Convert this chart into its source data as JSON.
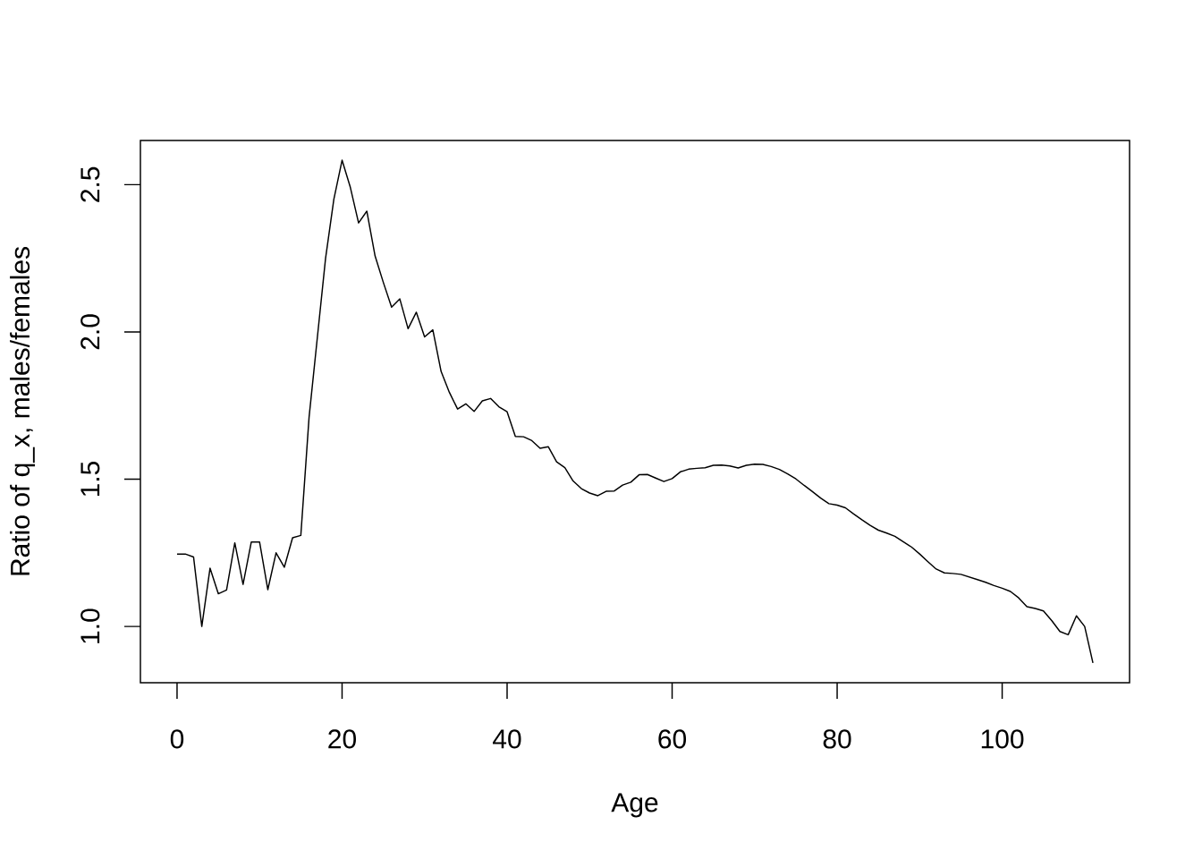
{
  "chart_data": {
    "type": "line",
    "xlabel": "Age",
    "ylabel": "Ratio of q_x, males/females",
    "x": [
      0,
      1,
      2,
      3,
      4,
      5,
      6,
      7,
      8,
      9,
      10,
      11,
      12,
      13,
      14,
      15,
      16,
      17,
      18,
      19,
      20,
      21,
      22,
      23,
      24,
      25,
      26,
      27,
      28,
      29,
      30,
      31,
      32,
      33,
      34,
      35,
      36,
      37,
      38,
      39,
      40,
      41,
      42,
      43,
      44,
      45,
      46,
      47,
      48,
      49,
      50,
      51,
      52,
      53,
      54,
      55,
      56,
      57,
      58,
      59,
      60,
      61,
      62,
      63,
      64,
      65,
      66,
      67,
      68,
      69,
      70,
      71,
      72,
      73,
      74,
      75,
      76,
      77,
      78,
      79,
      80,
      81,
      82,
      83,
      84,
      85,
      86,
      87,
      88,
      89,
      90,
      91,
      92,
      93,
      94,
      95,
      96,
      97,
      98,
      99,
      100,
      101,
      102,
      103,
      104,
      105,
      106,
      107,
      108,
      109,
      110,
      111
    ],
    "values": [
      1.246,
      1.246,
      1.236,
      1.0,
      1.198,
      1.111,
      1.124,
      1.284,
      1.143,
      1.287,
      1.287,
      1.125,
      1.25,
      1.201,
      1.301,
      1.309,
      1.71,
      1.98,
      2.25,
      2.45,
      2.583,
      2.491,
      2.37,
      2.41,
      2.258,
      2.168,
      2.084,
      2.112,
      2.011,
      2.067,
      1.983,
      2.007,
      1.866,
      1.795,
      1.738,
      1.756,
      1.73,
      1.766,
      1.774,
      1.746,
      1.729,
      1.645,
      1.644,
      1.631,
      1.605,
      1.61,
      1.559,
      1.539,
      1.494,
      1.468,
      1.453,
      1.444,
      1.459,
      1.46,
      1.48,
      1.49,
      1.515,
      1.516,
      1.504,
      1.492,
      1.502,
      1.525,
      1.534,
      1.537,
      1.539,
      1.547,
      1.548,
      1.545,
      1.538,
      1.547,
      1.551,
      1.55,
      1.543,
      1.533,
      1.518,
      1.501,
      1.479,
      1.458,
      1.436,
      1.417,
      1.412,
      1.403,
      1.382,
      1.362,
      1.343,
      1.327,
      1.317,
      1.306,
      1.288,
      1.27,
      1.246,
      1.22,
      1.195,
      1.182,
      1.18,
      1.177,
      1.168,
      1.159,
      1.15,
      1.139,
      1.13,
      1.119,
      1.097,
      1.067,
      1.061,
      1.053,
      1.02,
      0.983,
      0.972,
      1.036,
      1.0,
      0.876
    ],
    "color": "#000000",
    "marker": "none",
    "line_style": "solid",
    "xlim": [
      -4.44,
      115.44
    ],
    "ylim": [
      0.809,
      2.65
    ],
    "xticks": [
      0,
      20,
      40,
      60,
      80,
      100
    ],
    "yticks": [
      {
        "value": 1,
        "label": "1.0"
      },
      {
        "value": 1.5,
        "label": "1.5"
      },
      {
        "value": 2,
        "label": "2.0"
      },
      {
        "value": 2.5,
        "label": "2.5"
      }
    ]
  }
}
